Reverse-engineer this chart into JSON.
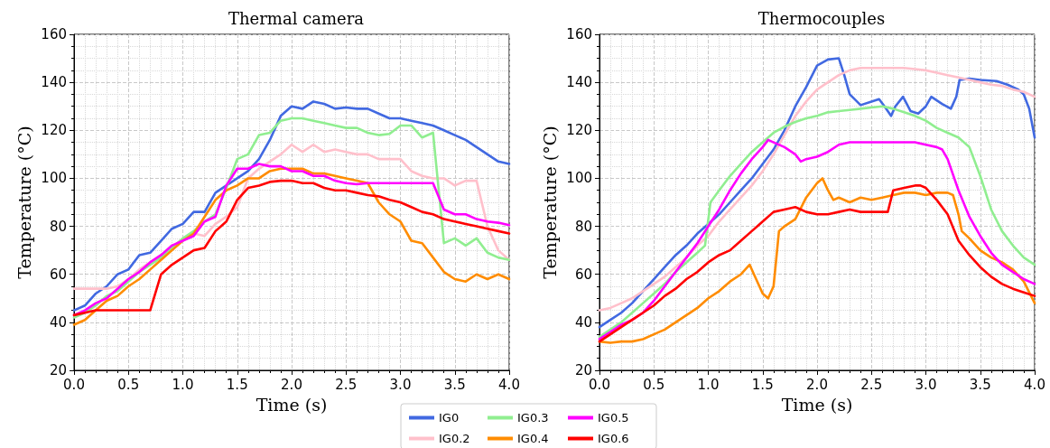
{
  "chart_data": [
    {
      "type": "line",
      "title": "Thermal camera",
      "xlabel": "Time (s)",
      "ylabel": "Temperature (°C)",
      "legend": "bottom",
      "grid": true,
      "xlim": [
        0,
        4
      ],
      "xticks": [
        {
          "value": 0,
          "label": "0.0"
        },
        {
          "value": 0.5,
          "label": "0.5"
        },
        {
          "value": 1,
          "label": "1.0"
        },
        {
          "value": 1.5,
          "label": "1.5"
        },
        {
          "value": 2,
          "label": "2.0"
        },
        {
          "value": 2.5,
          "label": "2.5"
        },
        {
          "value": 3,
          "label": "3.0"
        },
        {
          "value": 3.5,
          "label": "3.5"
        },
        {
          "value": 4,
          "label": "4.0"
        }
      ],
      "ylim": [
        20,
        160
      ],
      "yticks": [
        20,
        40,
        60,
        80,
        100,
        120,
        140,
        160
      ],
      "x": [
        0,
        0.1,
        0.2,
        0.3,
        0.4,
        0.5,
        0.6,
        0.7,
        0.8,
        0.9,
        1.0,
        1.1,
        1.2,
        1.3,
        1.4,
        1.5,
        1.6,
        1.7,
        1.8,
        1.9,
        2.0,
        2.1,
        2.2,
        2.3,
        2.4,
        2.5,
        2.6,
        2.7,
        2.8,
        2.9,
        3.0,
        3.1,
        3.2,
        3.3,
        3.4,
        3.5,
        3.6,
        3.7,
        3.8,
        3.9,
        4.0
      ],
      "series": [
        {
          "name": "IG0",
          "color": "#4169e1",
          "values": [
            45,
            47,
            52,
            55,
            60,
            62,
            68,
            69,
            74,
            79,
            81,
            86,
            86,
            94,
            97,
            100,
            103,
            108,
            116,
            126,
            130,
            129,
            132,
            131,
            129,
            129.5,
            129,
            129,
            127,
            125,
            125,
            124,
            123,
            122,
            120,
            118,
            116,
            113,
            110,
            107,
            106
          ]
        },
        {
          "name": "IG0.2",
          "color": "#ffc0cb",
          "values": [
            54,
            54,
            54,
            54,
            55,
            58,
            62,
            65,
            68,
            71,
            75,
            77,
            76,
            81,
            84,
            88,
            100,
            104,
            107,
            110,
            114,
            111,
            114,
            111,
            112,
            111,
            110,
            110,
            108,
            108,
            108,
            103,
            101,
            100,
            100,
            97,
            99,
            99,
            80,
            70,
            66
          ]
        },
        {
          "name": "IG0.3",
          "color": "#90ee90",
          "values": [
            42,
            44,
            47,
            51,
            53,
            57,
            61,
            64,
            67,
            71,
            75,
            78,
            82,
            85,
            96,
            108,
            110,
            118,
            119,
            124,
            125,
            125,
            124,
            123,
            122,
            121,
            121,
            119,
            118,
            118.5,
            122,
            122,
            117,
            119,
            73,
            75,
            72,
            75,
            69,
            67,
            66
          ]
        },
        {
          "name": "IG0.4",
          "color": "#ff8c00",
          "values": [
            39,
            41,
            45,
            49,
            51,
            55,
            58,
            62,
            66,
            70,
            74,
            77,
            84,
            91,
            95,
            97,
            100,
            100,
            103,
            104,
            104,
            104,
            102,
            102,
            101,
            100,
            99,
            98,
            90,
            85,
            82,
            74,
            73,
            67,
            61,
            58,
            57,
            60,
            58,
            60,
            58
          ]
        },
        {
          "name": "IG0.5",
          "color": "#ff00ff",
          "values": [
            43,
            45,
            48,
            50,
            54,
            58,
            61,
            65,
            68,
            72,
            74,
            76,
            82,
            84,
            97,
            104,
            104,
            106,
            105,
            105,
            103,
            103,
            101,
            101,
            99,
            98,
            97.5,
            98,
            98,
            98,
            98,
            98,
            98,
            98,
            87,
            85,
            85,
            83,
            82,
            81.5,
            80.5
          ]
        },
        {
          "name": "IG0.6",
          "color": "#ff0000",
          "values": [
            43,
            44,
            45,
            45,
            45,
            45,
            45,
            45,
            60,
            64,
            67,
            70,
            71,
            78,
            82,
            91,
            96,
            97,
            98.5,
            99,
            99,
            98,
            98,
            96,
            95,
            95,
            94,
            93,
            92.5,
            91,
            90,
            88,
            86,
            85,
            83,
            82,
            81,
            80,
            79,
            78,
            77
          ]
        }
      ]
    },
    {
      "type": "line",
      "title": "Thermocouples",
      "xlabel": "Time (s)",
      "ylabel": "Temperature (°C)",
      "legend": "bottom",
      "grid": true,
      "xlim": [
        0,
        4
      ],
      "xticks": [
        {
          "value": 0,
          "label": "0.0"
        },
        {
          "value": 0.5,
          "label": "0.5"
        },
        {
          "value": 1,
          "label": "1.0"
        },
        {
          "value": 1.5,
          "label": "1.5"
        },
        {
          "value": 2,
          "label": "2.0"
        },
        {
          "value": 2.5,
          "label": "2.5"
        },
        {
          "value": 3,
          "label": "3.0"
        },
        {
          "value": 3.5,
          "label": "3.5"
        },
        {
          "value": 4,
          "label": "4.0"
        }
      ],
      "ylim": [
        20,
        160
      ],
      "yticks": [
        20,
        40,
        60,
        80,
        100,
        120,
        140,
        160
      ],
      "series": [
        {
          "name": "IG0",
          "color": "#4169e1",
          "x": [
            0,
            0.1,
            0.2,
            0.3,
            0.4,
            0.5,
            0.6,
            0.7,
            0.8,
            0.9,
            1.0,
            1.1,
            1.2,
            1.3,
            1.4,
            1.5,
            1.6,
            1.7,
            1.8,
            1.9,
            2.0,
            2.1,
            2.2,
            2.25,
            2.3,
            2.4,
            2.5,
            2.57,
            2.62,
            2.68,
            2.72,
            2.79,
            2.86,
            2.93,
            3.0,
            3.05,
            3.15,
            3.23,
            3.28,
            3.31,
            3.4,
            3.5,
            3.65,
            3.75,
            3.85,
            3.9,
            3.95,
            4.0
          ],
          "values": [
            38,
            41,
            44,
            48,
            53,
            58,
            63,
            68,
            72,
            77,
            81,
            85,
            90,
            95,
            100,
            106,
            112,
            120,
            130,
            138,
            147,
            149.5,
            150,
            143,
            135,
            130.5,
            132,
            133,
            130,
            126,
            130,
            134,
            128,
            127,
            130,
            134,
            131,
            129,
            134,
            141,
            141.5,
            141,
            140.5,
            139,
            137,
            135,
            129,
            117
          ]
        },
        {
          "name": "IG0.2",
          "color": "#ffc0cb",
          "x": [
            0,
            0.1,
            0.2,
            0.3,
            0.4,
            0.5,
            0.6,
            0.7,
            0.8,
            0.9,
            1.0,
            1.1,
            1.2,
            1.3,
            1.4,
            1.5,
            1.6,
            1.7,
            1.8,
            1.9,
            2.0,
            2.1,
            2.2,
            2.3,
            2.4,
            2.5,
            2.6,
            2.7,
            2.8,
            2.9,
            3.0,
            3.1,
            3.2,
            3.3,
            3.4,
            3.5,
            3.6,
            3.7,
            3.8,
            3.9,
            4.0
          ],
          "values": [
            45,
            46,
            48,
            50,
            53,
            56,
            59,
            63,
            67,
            72,
            76,
            82,
            87,
            92,
            97,
            103,
            110,
            118,
            126,
            132,
            137,
            140,
            143,
            145,
            146,
            146,
            146,
            146,
            146,
            145.5,
            145,
            144,
            143,
            142,
            141,
            140,
            139,
            138.5,
            137,
            136,
            134
          ]
        },
        {
          "name": "IG0.3",
          "color": "#90ee90",
          "x": [
            0,
            0.1,
            0.2,
            0.3,
            0.4,
            0.5,
            0.6,
            0.7,
            0.8,
            0.9,
            0.97,
            1.02,
            1.1,
            1.2,
            1.3,
            1.4,
            1.5,
            1.6,
            1.7,
            1.8,
            1.9,
            2.0,
            2.1,
            2.2,
            2.3,
            2.4,
            2.5,
            2.6,
            2.7,
            2.8,
            2.9,
            3.0,
            3.1,
            3.2,
            3.3,
            3.4,
            3.5,
            3.6,
            3.7,
            3.8,
            3.9,
            4.0
          ],
          "values": [
            34,
            37,
            40,
            44,
            48,
            52,
            56,
            61,
            65,
            69,
            72,
            90,
            95,
            101,
            106,
            111,
            115,
            119,
            121.5,
            123.5,
            125,
            126,
            127.5,
            128,
            128.5,
            129,
            129.5,
            130,
            129,
            127.5,
            126,
            124,
            121,
            119,
            117,
            113,
            101,
            87,
            78,
            72,
            67,
            64
          ]
        },
        {
          "name": "IG0.4",
          "color": "#ff8c00",
          "x": [
            0,
            0.1,
            0.2,
            0.3,
            0.4,
            0.5,
            0.6,
            0.7,
            0.8,
            0.9,
            1.0,
            1.1,
            1.2,
            1.3,
            1.38,
            1.42,
            1.5,
            1.55,
            1.6,
            1.65,
            1.7,
            1.8,
            1.9,
            2.0,
            2.05,
            2.1,
            2.15,
            2.2,
            2.3,
            2.4,
            2.5,
            2.6,
            2.7,
            2.8,
            2.9,
            3.0,
            3.1,
            3.2,
            3.25,
            3.3,
            3.33,
            3.4,
            3.5,
            3.6,
            3.7,
            3.8,
            3.9,
            4.0
          ],
          "values": [
            32,
            31.5,
            32,
            32,
            33,
            35,
            37,
            40,
            43,
            46,
            50,
            53,
            57,
            60,
            64,
            60,
            52,
            50,
            55,
            78,
            80,
            83,
            92,
            98,
            100,
            95,
            91,
            92,
            90,
            92,
            91,
            92,
            93,
            94,
            94,
            93,
            94,
            94,
            93,
            85,
            78,
            75,
            70,
            67,
            65,
            62,
            57,
            48
          ]
        },
        {
          "name": "IG0.5",
          "color": "#ff00ff",
          "x": [
            0,
            0.1,
            0.2,
            0.3,
            0.4,
            0.5,
            0.6,
            0.7,
            0.8,
            0.9,
            1.0,
            1.1,
            1.2,
            1.3,
            1.4,
            1.5,
            1.55,
            1.6,
            1.7,
            1.8,
            1.85,
            1.9,
            2.0,
            2.1,
            2.2,
            2.3,
            2.5,
            2.7,
            2.9,
            3.0,
            3.1,
            3.15,
            3.2,
            3.3,
            3.4,
            3.5,
            3.6,
            3.7,
            3.8,
            3.9,
            4.0
          ],
          "values": [
            33,
            36,
            39,
            41,
            44,
            49,
            55,
            61,
            67,
            73,
            80,
            87,
            95,
            102,
            108,
            113,
            116,
            115,
            113,
            110,
            107,
            108,
            109,
            111,
            114,
            115,
            115,
            115,
            115,
            114,
            113,
            112,
            108,
            95,
            84,
            76,
            69,
            64,
            61,
            58,
            56
          ]
        },
        {
          "name": "IG0.6",
          "color": "#ff0000",
          "x": [
            0,
            0.1,
            0.2,
            0.3,
            0.4,
            0.5,
            0.6,
            0.7,
            0.8,
            0.9,
            1.0,
            1.1,
            1.2,
            1.3,
            1.4,
            1.5,
            1.6,
            1.7,
            1.8,
            1.9,
            2.0,
            2.1,
            2.2,
            2.3,
            2.4,
            2.5,
            2.6,
            2.65,
            2.7,
            2.8,
            2.9,
            2.95,
            3.0,
            3.1,
            3.2,
            3.3,
            3.4,
            3.5,
            3.6,
            3.7,
            3.8,
            3.9,
            4.0
          ],
          "values": [
            32,
            35,
            38,
            41,
            44,
            47,
            51,
            54,
            58,
            61,
            65,
            68,
            70,
            74,
            78,
            82,
            86,
            87,
            88,
            86,
            85,
            85,
            86,
            87,
            86,
            86,
            86,
            86,
            95,
            96,
            97,
            97,
            96,
            91,
            85,
            74,
            68,
            63,
            59,
            56,
            54,
            52.5,
            51
          ]
        }
      ]
    }
  ]
}
